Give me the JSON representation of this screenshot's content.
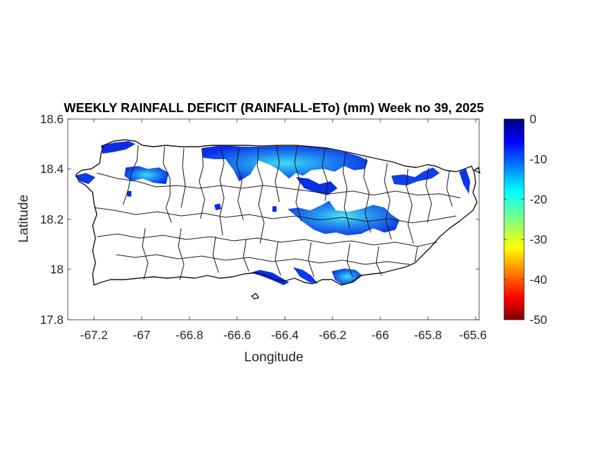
{
  "title": "WEEKLY RAINFALL DEFICIT (RAINFALL-ETo) (mm) Week no 39, 2025",
  "xlabel": "Longitude",
  "ylabel": "Latitude",
  "xticks": [
    "-67.2",
    "-67",
    "-66.8",
    "-66.6",
    "-66.4",
    "-66.2",
    "-66",
    "-65.8",
    "-65.6"
  ],
  "yticks": [
    "18.6",
    "18.4",
    "18.2",
    "18",
    "17.8"
  ],
  "colorbar_ticks": [
    "0",
    "-10",
    "-20",
    "-30",
    "-40",
    "-50"
  ],
  "map": {
    "region": "Puerto Rico",
    "xlim": [
      -67.3,
      -65.58
    ],
    "ylim": [
      17.8,
      18.6
    ],
    "variable": "weekly rainfall minus reference evapotranspiration (mm)",
    "colorbar_range": [
      -50,
      0
    ],
    "colormap": "jet (dark red at -50 to dark blue at 0)",
    "deficit_areas_shown": "blue to cyan patches (about -5 to -18 mm) along the north coast, the west, the center-east interior and small south-coast patches; remaining land white",
    "colors": {
      "shallow_deficit": "#0a2de6",
      "moderate_deficit": "#22c8f0",
      "no_data": "#ffffff",
      "boundaries": "#1a1a1a"
    }
  }
}
